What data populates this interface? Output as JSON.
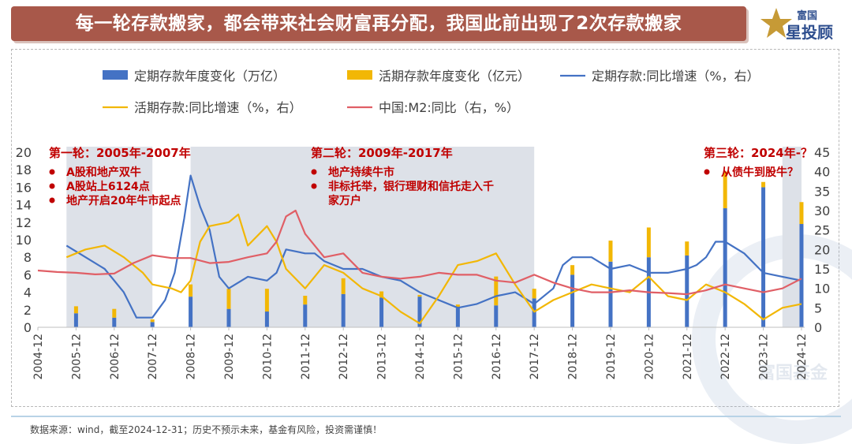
{
  "title": "每一轮存款搬家，都会带来社会财富再分配，我国此前出现了2次存款搬家",
  "brand": {
    "line1": "富国",
    "line2": "星投顾"
  },
  "watermark": "富国基金",
  "source": "数据来源：wind，截至2024-12-31；历史不预示未来，基金有风险，投资需谨慎！",
  "colors": {
    "time_deposit": "#4472c4",
    "demand_deposit": "#f2b705",
    "m2": "#e05f66",
    "annotation": "#c00000",
    "shade": "#dde1e8",
    "banner": "#a8584a"
  },
  "annotations": [
    {
      "title": "第一轮：2005年-2007年",
      "bullets": [
        "A股和地产双牛",
        "A股站上6124点",
        "地产开启20年牛市起点"
      ]
    },
    {
      "title": "第二轮：2009年-2017年",
      "bullets": [
        "地产持续牛市",
        "非标托举，银行理财和信托走入千",
        "家万户"
      ]
    },
    {
      "title": "第三轮：2024年-？",
      "bullets": [
        "从债牛到股牛？"
      ]
    }
  ],
  "chart_data": {
    "type": "bar",
    "x_tick_labels": [
      "2004-12",
      "2005-12",
      "2006-12",
      "2007-12",
      "2008-12",
      "2009-12",
      "2010-12",
      "2011-12",
      "2012-12",
      "2013-12",
      "2014-12",
      "2015-12",
      "2016-12",
      "2017-12",
      "2018-12",
      "2019-12",
      "2020-12",
      "2021-12",
      "2022-12",
      "2023-12",
      "2024-12"
    ],
    "y_left": {
      "min": 0,
      "max": 20,
      "ticks": [
        0,
        2,
        4,
        6,
        8,
        10,
        12,
        14,
        16,
        18,
        20
      ]
    },
    "y_right": {
      "min": 0,
      "max": 45,
      "ticks": [
        0,
        5,
        10,
        15,
        20,
        25,
        30,
        35,
        40,
        45
      ]
    },
    "shaded_periods": [
      [
        "2005-09",
        "2007-12"
      ],
      [
        "2008-12",
        "2017-12"
      ],
      [
        "2024-06",
        "2024-12"
      ]
    ],
    "series": [
      {
        "name": "定期存款年度变化（万亿）",
        "kind": "bar",
        "axis": "left",
        "color": "#4472c4",
        "points": [
          [
            "2005-12",
            1.6
          ],
          [
            "2006-12",
            1.1
          ],
          [
            "2007-12",
            0.6
          ],
          [
            "2008-12",
            3.5
          ],
          [
            "2009-12",
            2.1
          ],
          [
            "2010-12",
            1.8
          ],
          [
            "2011-12",
            2.6
          ],
          [
            "2012-12",
            3.8
          ],
          [
            "2013-12",
            3.4
          ],
          [
            "2014-12",
            3.5
          ],
          [
            "2015-12",
            2.2
          ],
          [
            "2016-12",
            2.5
          ],
          [
            "2017-12",
            3.3
          ],
          [
            "2018-12",
            6.0
          ],
          [
            "2019-12",
            7.5
          ],
          [
            "2020-12",
            8.0
          ],
          [
            "2021-12",
            8.2
          ],
          [
            "2022-12",
            13.6
          ],
          [
            "2023-12",
            16.0
          ],
          [
            "2024-12",
            11.8
          ]
        ]
      },
      {
        "name": "活期存款年度变化（亿元）",
        "kind": "bar",
        "axis": "left",
        "color": "#f2b705",
        "points": [
          [
            "2005-12",
            0.8
          ],
          [
            "2006-12",
            1.0
          ],
          [
            "2007-12",
            0.3
          ],
          [
            "2008-12",
            1.4
          ],
          [
            "2009-12",
            2.3
          ],
          [
            "2010-12",
            2.6
          ],
          [
            "2011-12",
            1.0
          ],
          [
            "2012-12",
            1.8
          ],
          [
            "2013-12",
            0.7
          ],
          [
            "2014-12",
            0.2
          ],
          [
            "2015-12",
            0.4
          ],
          [
            "2016-12",
            3.3
          ],
          [
            "2017-12",
            1.1
          ],
          [
            "2018-12",
            1.1
          ],
          [
            "2019-12",
            2.4
          ],
          [
            "2020-12",
            3.4
          ],
          [
            "2021-12",
            1.6
          ],
          [
            "2022-12",
            4.2
          ],
          [
            "2023-12",
            0.6
          ],
          [
            "2024-12",
            2.5
          ]
        ]
      },
      {
        "name": "定期存款:同比增速（%，右）",
        "kind": "line",
        "axis": "right",
        "color": "#4472c4",
        "points": [
          [
            "2005-09",
            21
          ],
          [
            "2006-03",
            18
          ],
          [
            "2006-09",
            15
          ],
          [
            "2007-03",
            9
          ],
          [
            "2007-07",
            2.5
          ],
          [
            "2007-12",
            2.5
          ],
          [
            "2008-04",
            7
          ],
          [
            "2008-07",
            14
          ],
          [
            "2008-10",
            28
          ],
          [
            "2008-12",
            39
          ],
          [
            "2009-03",
            31
          ],
          [
            "2009-06",
            25
          ],
          [
            "2009-09",
            13
          ],
          [
            "2009-12",
            10
          ],
          [
            "2010-06",
            13
          ],
          [
            "2010-12",
            12
          ],
          [
            "2011-03",
            14
          ],
          [
            "2011-06",
            20
          ],
          [
            "2011-12",
            19
          ],
          [
            "2012-03",
            19
          ],
          [
            "2012-06",
            17
          ],
          [
            "2012-12",
            15
          ],
          [
            "2013-06",
            15
          ],
          [
            "2013-12",
            13
          ],
          [
            "2014-06",
            12
          ],
          [
            "2014-12",
            9
          ],
          [
            "2015-06",
            7
          ],
          [
            "2015-12",
            5
          ],
          [
            "2016-06",
            6
          ],
          [
            "2016-12",
            8
          ],
          [
            "2017-06",
            9
          ],
          [
            "2017-12",
            6
          ],
          [
            "2018-06",
            10
          ],
          [
            "2018-09",
            16
          ],
          [
            "2018-12",
            18
          ],
          [
            "2019-06",
            18
          ],
          [
            "2019-12",
            15
          ],
          [
            "2020-06",
            16
          ],
          [
            "2020-12",
            14
          ],
          [
            "2021-06",
            14
          ],
          [
            "2021-12",
            15
          ],
          [
            "2022-03",
            16
          ],
          [
            "2022-06",
            18
          ],
          [
            "2022-09",
            22
          ],
          [
            "2022-12",
            22
          ],
          [
            "2023-06",
            19
          ],
          [
            "2023-12",
            14
          ],
          [
            "2024-06",
            13
          ],
          [
            "2024-12",
            12
          ]
        ]
      },
      {
        "name": "活期存款:同比增速（%，右）",
        "kind": "line",
        "axis": "right",
        "color": "#f2b705",
        "points": [
          [
            "2005-09",
            18
          ],
          [
            "2006-03",
            20
          ],
          [
            "2006-09",
            21
          ],
          [
            "2007-03",
            18
          ],
          [
            "2007-09",
            14
          ],
          [
            "2007-12",
            11
          ],
          [
            "2008-06",
            10
          ],
          [
            "2008-09",
            9
          ],
          [
            "2008-12",
            12
          ],
          [
            "2009-03",
            22
          ],
          [
            "2009-06",
            26
          ],
          [
            "2009-12",
            27
          ],
          [
            "2010-03",
            29
          ],
          [
            "2010-06",
            21
          ],
          [
            "2010-12",
            26
          ],
          [
            "2011-03",
            22
          ],
          [
            "2011-06",
            15
          ],
          [
            "2011-12",
            10
          ],
          [
            "2012-06",
            16
          ],
          [
            "2012-12",
            14
          ],
          [
            "2013-06",
            10
          ],
          [
            "2013-12",
            8
          ],
          [
            "2014-06",
            4
          ],
          [
            "2014-12",
            1
          ],
          [
            "2015-06",
            8
          ],
          [
            "2015-12",
            16
          ],
          [
            "2016-06",
            17
          ],
          [
            "2016-12",
            19
          ],
          [
            "2017-06",
            11
          ],
          [
            "2017-12",
            4
          ],
          [
            "2018-06",
            7
          ],
          [
            "2018-12",
            9
          ],
          [
            "2019-06",
            11
          ],
          [
            "2019-12",
            10
          ],
          [
            "2020-06",
            9
          ],
          [
            "2020-12",
            13
          ],
          [
            "2021-06",
            8
          ],
          [
            "2021-12",
            7
          ],
          [
            "2022-06",
            11
          ],
          [
            "2022-12",
            9
          ],
          [
            "2023-06",
            6
          ],
          [
            "2023-12",
            2
          ],
          [
            "2024-06",
            5
          ],
          [
            "2024-12",
            6
          ]
        ]
      },
      {
        "name": "中国:M2:同比（右，%）",
        "kind": "line",
        "axis": "right",
        "color": "#e05f66",
        "points": [
          [
            "2004-12",
            14.6
          ],
          [
            "2005-06",
            14.2
          ],
          [
            "2005-12",
            14.0
          ],
          [
            "2006-06",
            13.6
          ],
          [
            "2006-12",
            13.8
          ],
          [
            "2007-06",
            16.5
          ],
          [
            "2007-12",
            18.5
          ],
          [
            "2008-06",
            17.8
          ],
          [
            "2008-12",
            17.8
          ],
          [
            "2009-06",
            16.5
          ],
          [
            "2009-12",
            16.8
          ],
          [
            "2010-06",
            18
          ],
          [
            "2010-12",
            19
          ],
          [
            "2011-03",
            22
          ],
          [
            "2011-06",
            28.5
          ],
          [
            "2011-09",
            30
          ],
          [
            "2011-12",
            24
          ],
          [
            "2012-06",
            18
          ],
          [
            "2012-12",
            19
          ],
          [
            "2013-06",
            14
          ],
          [
            "2013-12",
            13
          ],
          [
            "2014-06",
            12.5
          ],
          [
            "2014-12",
            13
          ],
          [
            "2015-06",
            14
          ],
          [
            "2015-12",
            13.5
          ],
          [
            "2016-06",
            13.5
          ],
          [
            "2016-12",
            12
          ],
          [
            "2017-06",
            11.5
          ],
          [
            "2017-12",
            13.5
          ],
          [
            "2018-06",
            11.5
          ],
          [
            "2018-12",
            10
          ],
          [
            "2019-06",
            9
          ],
          [
            "2019-12",
            9
          ],
          [
            "2020-06",
            9.5
          ],
          [
            "2020-12",
            9
          ],
          [
            "2021-06",
            8.8
          ],
          [
            "2021-12",
            8.5
          ],
          [
            "2022-06",
            9.5
          ],
          [
            "2022-12",
            11
          ],
          [
            "2023-06",
            10
          ],
          [
            "2023-12",
            9
          ],
          [
            "2024-06",
            10
          ],
          [
            "2024-12",
            12.5
          ]
        ]
      }
    ]
  }
}
